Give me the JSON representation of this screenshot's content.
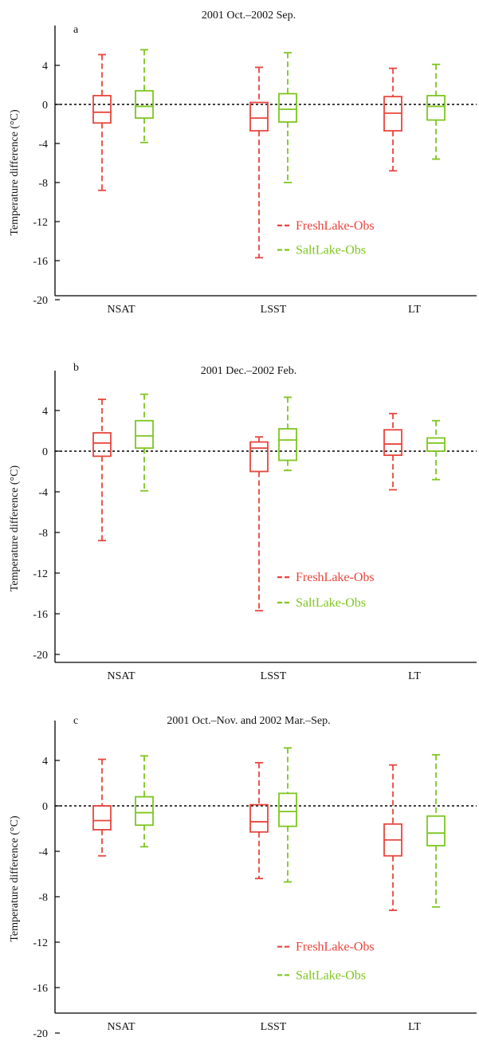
{
  "colors": {
    "fresh": "#e8453c",
    "salt": "#7ec61f",
    "axis": "#000000"
  },
  "chart_data": [
    {
      "type": "box",
      "panel_letter": "a",
      "title": "2001 Oct.–2002 Sep.",
      "ylabel": "Temperature difference (°C)",
      "ylim": [
        -20,
        7
      ],
      "yticks": [
        "4",
        "0",
        "-4",
        "-8",
        "-12",
        "-16",
        "-20"
      ],
      "categories": [
        "NSAT",
        "LSST",
        "LT"
      ],
      "legend": [
        "FreshLake-Obs",
        "SaltLake-Obs"
      ],
      "series": [
        {
          "name": "FreshLake-Obs",
          "boxes": [
            {
              "whisker_low": -8.8,
              "q1": -1.9,
              "median": -0.8,
              "q3": 0.9,
              "whisker_high": 5.1
            },
            {
              "whisker_low": -15.7,
              "q1": -2.7,
              "median": -1.4,
              "q3": 0.2,
              "whisker_high": 3.8
            },
            {
              "whisker_low": -6.8,
              "q1": -2.7,
              "median": -0.9,
              "q3": 0.8,
              "whisker_high": 3.7
            }
          ]
        },
        {
          "name": "SaltLake-Obs",
          "boxes": [
            {
              "whisker_low": -3.9,
              "q1": -1.4,
              "median": -0.2,
              "q3": 1.4,
              "whisker_high": 5.6
            },
            {
              "whisker_low": -8.0,
              "q1": -1.8,
              "median": -0.5,
              "q3": 1.1,
              "whisker_high": 5.3
            },
            {
              "whisker_low": -5.6,
              "q1": -1.6,
              "median": -0.2,
              "q3": 0.9,
              "whisker_high": 4.1
            }
          ]
        }
      ]
    },
    {
      "type": "box",
      "panel_letter": "b",
      "title": "2001 Dec.–2002 Feb.",
      "ylabel": "Temperature difference (°C)",
      "ylim": [
        -20,
        7
      ],
      "yticks": [
        "4",
        "0",
        "-4",
        "-8",
        "-12",
        "-16",
        "-20"
      ],
      "categories": [
        "NSAT",
        "LSST",
        "LT"
      ],
      "legend": [
        "FreshLake-Obs",
        "SaltLake-Obs"
      ],
      "series": [
        {
          "name": "FreshLake-Obs",
          "boxes": [
            {
              "whisker_low": -8.8,
              "q1": -0.5,
              "median": 0.8,
              "q3": 1.8,
              "whisker_high": 5.1
            },
            {
              "whisker_low": -15.7,
              "q1": -2.0,
              "median": 0.3,
              "q3": 0.9,
              "whisker_high": 1.4
            },
            {
              "whisker_low": -3.8,
              "q1": -0.4,
              "median": 0.7,
              "q3": 2.1,
              "whisker_high": 3.7
            }
          ]
        },
        {
          "name": "SaltLake-Obs",
          "boxes": [
            {
              "whisker_low": -3.9,
              "q1": 0.3,
              "median": 1.5,
              "q3": 3.0,
              "whisker_high": 5.6
            },
            {
              "whisker_low": -1.9,
              "q1": -0.9,
              "median": 1.1,
              "q3": 2.2,
              "whisker_high": 5.3
            },
            {
              "whisker_low": -2.8,
              "q1": 0.0,
              "median": 0.8,
              "q3": 1.3,
              "whisker_high": 3.0
            }
          ]
        }
      ]
    },
    {
      "type": "box",
      "panel_letter": "c",
      "title": "2001 Oct.–Nov. and 2002 Mar.–Sep.",
      "ylabel": "Temperature difference (°C)",
      "ylim": [
        -20,
        7
      ],
      "yticks": [
        "4",
        "0",
        "-4",
        "-8",
        "-12",
        "-16",
        "-20"
      ],
      "categories": [
        "NSAT",
        "LSST",
        "LT"
      ],
      "legend": [
        "FreshLake-Obs",
        "SaltLake-Obs"
      ],
      "series": [
        {
          "name": "FreshLake-Obs",
          "boxes": [
            {
              "whisker_low": -4.4,
              "q1": -2.1,
              "median": -1.3,
              "q3": 0.0,
              "whisker_high": 4.1
            },
            {
              "whisker_low": -6.4,
              "q1": -2.3,
              "median": -1.4,
              "q3": 0.1,
              "whisker_high": 3.8
            },
            {
              "whisker_low": -9.2,
              "q1": -4.4,
              "median": -3.0,
              "q3": -1.6,
              "whisker_high": 3.6
            }
          ]
        },
        {
          "name": "SaltLake-Obs",
          "boxes": [
            {
              "whisker_low": -3.6,
              "q1": -1.7,
              "median": -0.6,
              "q3": 0.8,
              "whisker_high": 4.4
            },
            {
              "whisker_low": -6.7,
              "q1": -1.8,
              "median": -0.5,
              "q3": 1.1,
              "whisker_high": 5.1
            },
            {
              "whisker_low": -8.9,
              "q1": -3.5,
              "median": -2.4,
              "q3": -0.9,
              "whisker_high": 4.5
            }
          ]
        }
      ]
    }
  ]
}
